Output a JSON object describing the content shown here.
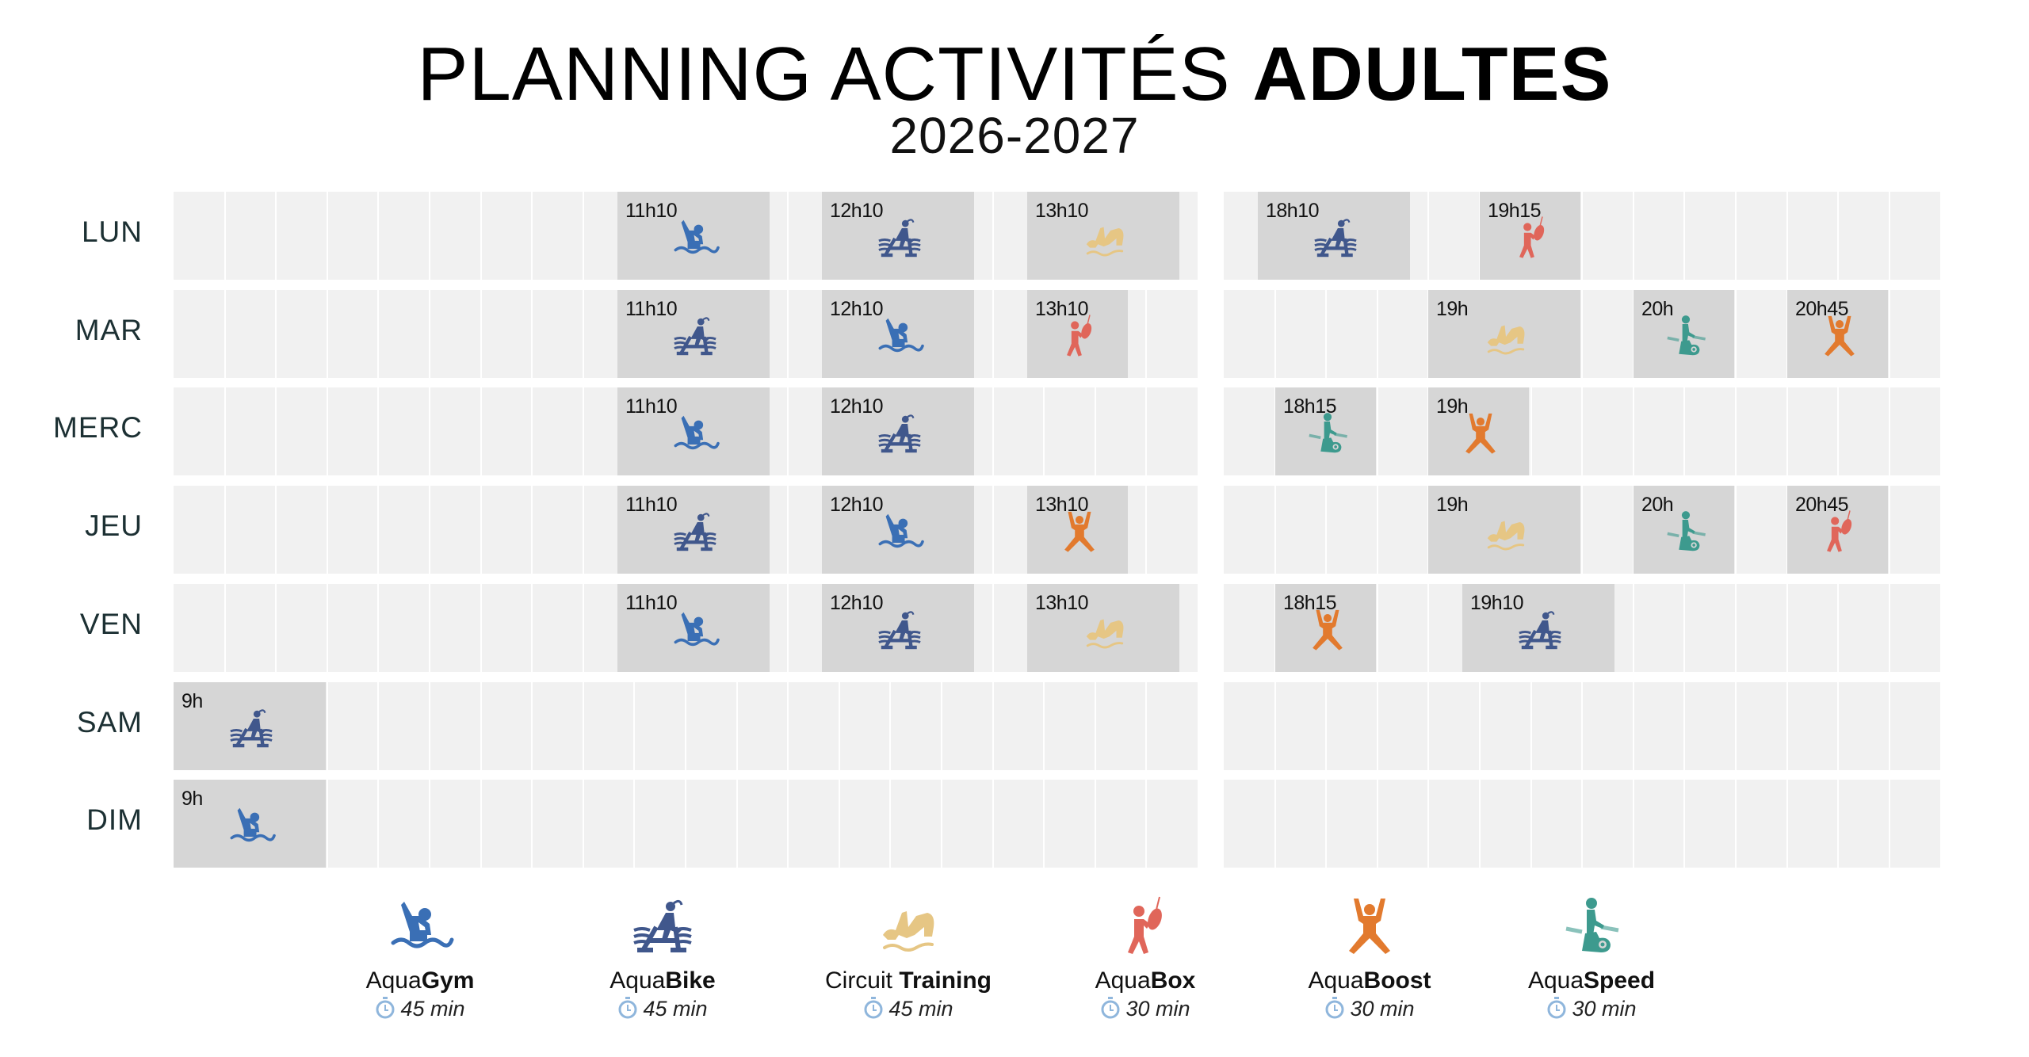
{
  "header": {
    "title_light": "PLANNING ACTIVITÉS ",
    "title_bold": "ADULTES",
    "subtitle": "2026-2027"
  },
  "timeline": {
    "morning_range": [
      "9h",
      "14h"
    ],
    "evening_range": [
      "18h",
      "21h30"
    ],
    "slot_minutes": 15
  },
  "activities": {
    "aquagym": {
      "prefix": "Aqua",
      "name": "Gym",
      "duration_label": "45 min",
      "minutes": 45,
      "color": "#3a6fb5",
      "icon": "swimmer-icon"
    },
    "aquabike": {
      "prefix": "Aqua",
      "name": "Bike",
      "duration_label": "45 min",
      "minutes": 45,
      "color": "#40578c",
      "icon": "water-bike-icon"
    },
    "circuit": {
      "prefix": "Circuit ",
      "name": "Training",
      "duration_label": "45 min",
      "minutes": 45,
      "color": "#e6c684",
      "icon": "circuit-training-icon"
    },
    "aquabox": {
      "prefix": "Aqua",
      "name": "Box",
      "duration_label": "30 min",
      "minutes": 30,
      "color": "#e0665a",
      "icon": "boxing-bag-icon"
    },
    "aquaboost": {
      "prefix": "Aqua",
      "name": "Boost",
      "duration_label": "30 min",
      "minutes": 30,
      "color": "#e27a2e",
      "icon": "jumping-person-icon"
    },
    "aquaspeed": {
      "prefix": "Aqua",
      "name": "Speed",
      "duration_label": "30 min",
      "minutes": 30,
      "color": "#3d9a8e",
      "icon": "stationary-bike-icon"
    }
  },
  "legend_order": [
    "aquagym",
    "aquabike",
    "circuit",
    "aquabox",
    "aquaboost",
    "aquaspeed"
  ],
  "days": [
    {
      "label": "LUN",
      "sessions": [
        {
          "time": "11h10",
          "activity": "aquagym"
        },
        {
          "time": "12h10",
          "activity": "aquabike"
        },
        {
          "time": "13h10",
          "activity": "circuit"
        },
        {
          "time": "18h10",
          "activity": "aquabike"
        },
        {
          "time": "19h15",
          "activity": "aquabox"
        }
      ]
    },
    {
      "label": "MAR",
      "sessions": [
        {
          "time": "11h10",
          "activity": "aquabike"
        },
        {
          "time": "12h10",
          "activity": "aquagym"
        },
        {
          "time": "13h10",
          "activity": "aquabox"
        },
        {
          "time": "19h",
          "activity": "circuit"
        },
        {
          "time": "20h",
          "activity": "aquaspeed"
        },
        {
          "time": "20h45",
          "activity": "aquaboost"
        }
      ]
    },
    {
      "label": "MERC",
      "sessions": [
        {
          "time": "11h10",
          "activity": "aquagym"
        },
        {
          "time": "12h10",
          "activity": "aquabike"
        },
        {
          "time": "18h15",
          "activity": "aquaspeed"
        },
        {
          "time": "19h",
          "activity": "aquaboost"
        }
      ]
    },
    {
      "label": "JEU",
      "sessions": [
        {
          "time": "11h10",
          "activity": "aquabike"
        },
        {
          "time": "12h10",
          "activity": "aquagym"
        },
        {
          "time": "13h10",
          "activity": "aquaboost"
        },
        {
          "time": "19h",
          "activity": "circuit"
        },
        {
          "time": "20h",
          "activity": "aquaspeed"
        },
        {
          "time": "20h45",
          "activity": "aquabox"
        }
      ]
    },
    {
      "label": "VEN",
      "sessions": [
        {
          "time": "11h10",
          "activity": "aquagym"
        },
        {
          "time": "12h10",
          "activity": "aquabike"
        },
        {
          "time": "13h10",
          "activity": "circuit"
        },
        {
          "time": "18h15",
          "activity": "aquaboost"
        },
        {
          "time": "19h10",
          "activity": "aquabike"
        }
      ]
    },
    {
      "label": "SAM",
      "sessions": [
        {
          "time": "9h",
          "activity": "aquabike"
        }
      ]
    },
    {
      "label": "DIM",
      "sessions": [
        {
          "time": "9h",
          "activity": "aquagym"
        }
      ]
    }
  ]
}
